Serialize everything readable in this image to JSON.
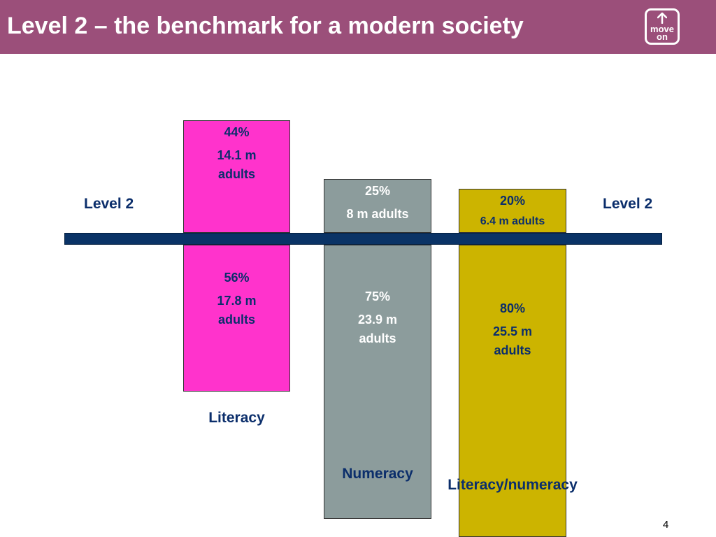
{
  "title": "Level 2 – the benchmark for a modern society",
  "logo": {
    "line1": "move",
    "line2": "on"
  },
  "level_left": "Level 2",
  "level_right": "Level 2",
  "page_number": "4",
  "colors": {
    "header": "#9b4f7a",
    "literacy": "#ff33cc",
    "numeracy": "#8c9c9c",
    "literacy_numeracy": "#ccb400",
    "baseline": "#0a3366",
    "label_text": "#0b2e6b"
  },
  "chart_data": {
    "type": "bar",
    "title": "Level 2 – the benchmark for a modern society",
    "reference_line": "Level 2",
    "categories": [
      "Literacy",
      "Numeracy",
      "Literacy/numeracy"
    ],
    "series": [
      {
        "name": "above",
        "values": [
          44,
          25,
          20
        ],
        "labels": [
          "44%",
          "25%",
          "20%"
        ],
        "amounts": [
          "14.1 m adults",
          "8 m adults",
          "6.4 m adults"
        ]
      },
      {
        "name": "below",
        "values": [
          56,
          75,
          80
        ],
        "labels": [
          "56%",
          "75%",
          "80%"
        ],
        "amounts": [
          "17.8 m adults",
          "23.9 m adults",
          "25.5 m adults"
        ]
      }
    ]
  }
}
